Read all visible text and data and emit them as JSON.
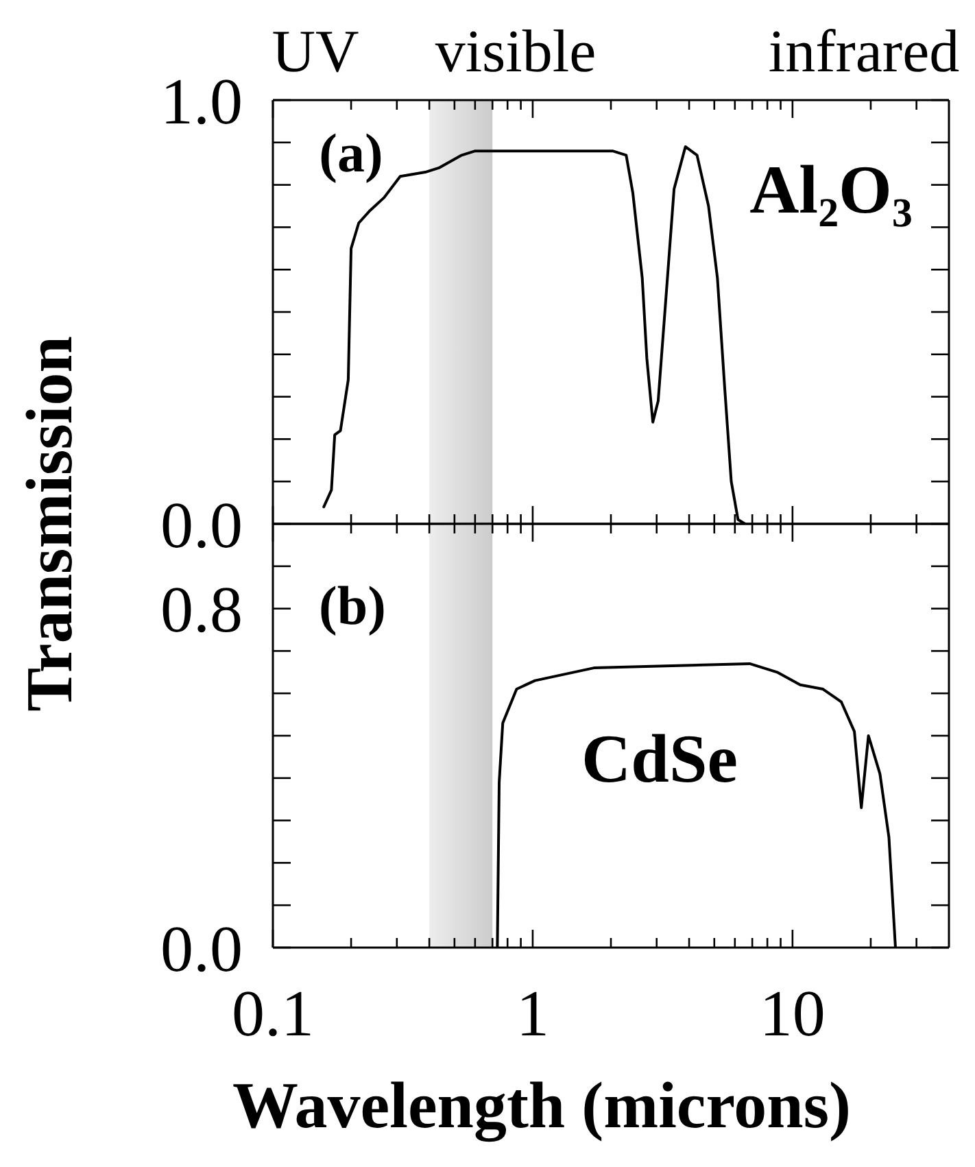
{
  "chart_data": [
    {
      "type": "line",
      "ylabel": "Transmission",
      "annotations": [
        "UV",
        "visible",
        "infrared",
        "(a)",
        "Al₂O₃"
      ],
      "x": [
        0.157,
        0.168,
        0.173,
        0.182,
        0.195,
        0.2,
        0.214,
        0.237,
        0.268,
        0.309,
        0.386,
        0.435,
        0.533,
        0.601,
        1.35,
        2.03,
        2.29,
        2.43,
        2.64,
        2.75,
        2.9,
        3.04,
        3.3,
        3.5,
        3.87,
        4.29,
        4.75,
        5.14,
        5.47,
        5.81,
        6.17,
        6.56
      ],
      "series": [
        {
          "color": "#000000",
          "values": [
            0.04,
            0.08,
            0.21,
            0.22,
            0.34,
            0.65,
            0.71,
            0.74,
            0.77,
            0.82,
            0.83,
            0.84,
            0.87,
            0.88,
            0.88,
            0.88,
            0.87,
            0.78,
            0.58,
            0.39,
            0.24,
            0.29,
            0.58,
            0.79,
            0.89,
            0.87,
            0.75,
            0.58,
            0.33,
            0.1,
            0.01,
            0.0
          ]
        }
      ],
      "log": "x",
      "marker": "none",
      "line_style": "solid",
      "grid": false,
      "tick_labels": "y",
      "xlim": [
        0.1,
        40
      ],
      "xticks": [
        0.1,
        {
          "value": 0.2,
          "label": null
        },
        {
          "value": 0.3,
          "label": null
        },
        {
          "value": 0.4,
          "label": null
        },
        {
          "value": 0.5,
          "label": null
        },
        {
          "value": 0.6,
          "label": null
        },
        {
          "value": 0.7,
          "label": null
        },
        {
          "value": 0.8,
          "label": null
        },
        {
          "value": 0.9,
          "label": null
        },
        1,
        {
          "value": 2,
          "label": null
        },
        {
          "value": 3,
          "label": null
        },
        {
          "value": 4,
          "label": null
        },
        {
          "value": 5,
          "label": null
        },
        {
          "value": 6,
          "label": null
        },
        {
          "value": 7,
          "label": null
        },
        {
          "value": 8,
          "label": null
        },
        {
          "value": 9,
          "label": null
        },
        10,
        {
          "value": 20,
          "label": null
        },
        {
          "value": 30,
          "label": null
        }
      ],
      "ylim": [
        0,
        1
      ],
      "yticks": [
        {
          "value": 0,
          "label": "0.0"
        },
        {
          "value": 0.1,
          "label": null
        },
        {
          "value": 0.2,
          "label": null
        },
        {
          "value": 0.3,
          "label": null
        },
        {
          "value": 0.4,
          "label": null
        },
        {
          "value": 0.5,
          "label": null
        },
        {
          "value": 0.6,
          "label": null
        },
        {
          "value": 0.7,
          "label": null
        },
        {
          "value": 0.8,
          "label": null
        },
        {
          "value": 0.9,
          "label": null
        },
        {
          "value": 1,
          "label": "1.0"
        }
      ],
      "bands": [
        {
          "axis": "x",
          "from": 0.4,
          "to": 0.7,
          "color": "#cccccc"
        }
      ]
    },
    {
      "type": "line",
      "xlabel": "Wavelength (microns)",
      "annotations": [
        "(b)",
        "CdSe"
      ],
      "x": [
        0.731,
        0.743,
        0.767,
        0.867,
        1.02,
        1.72,
        6.84,
        8.72,
        10.7,
        13.1,
        15.4,
        17.3,
        18.4,
        19.6,
        21.7,
        23.5,
        24.9
      ],
      "series": [
        {
          "color": "#000000",
          "values": [
            0.0,
            0.39,
            0.53,
            0.61,
            0.63,
            0.66,
            0.67,
            0.65,
            0.62,
            0.61,
            0.58,
            0.51,
            0.33,
            0.5,
            0.41,
            0.26,
            0.0
          ]
        }
      ],
      "log": "x",
      "marker": "none",
      "line_style": "solid",
      "grid": false,
      "xlim": [
        0.1,
        40
      ],
      "xticks": [
        0.1,
        {
          "value": 0.2,
          "label": null
        },
        {
          "value": 0.3,
          "label": null
        },
        {
          "value": 0.4,
          "label": null
        },
        {
          "value": 0.5,
          "label": null
        },
        {
          "value": 0.6,
          "label": null
        },
        {
          "value": 0.7,
          "label": null
        },
        {
          "value": 0.8,
          "label": null
        },
        {
          "value": 0.9,
          "label": null
        },
        1,
        {
          "value": 2,
          "label": null
        },
        {
          "value": 3,
          "label": null
        },
        {
          "value": 4,
          "label": null
        },
        {
          "value": 5,
          "label": null
        },
        {
          "value": 6,
          "label": null
        },
        {
          "value": 7,
          "label": null
        },
        {
          "value": 8,
          "label": null
        },
        {
          "value": 9,
          "label": null
        },
        10,
        {
          "value": 20,
          "label": null
        },
        {
          "value": 30,
          "label": null
        }
      ],
      "ylim": [
        0,
        1
      ],
      "yticks": [
        {
          "value": 0,
          "label": "0.0"
        },
        {
          "value": 0.1,
          "label": null
        },
        {
          "value": 0.2,
          "label": null
        },
        {
          "value": 0.3,
          "label": null
        },
        {
          "value": 0.4,
          "label": null
        },
        {
          "value": 0.5,
          "label": null
        },
        {
          "value": 0.6,
          "label": null
        },
        {
          "value": 0.7,
          "label": null
        },
        {
          "value": 0.8,
          "label": "0.8"
        },
        {
          "value": 0.9,
          "label": null
        }
      ],
      "bands": [
        {
          "axis": "x",
          "from": 0.4,
          "to": 0.7,
          "color": "#cccccc"
        }
      ]
    }
  ]
}
